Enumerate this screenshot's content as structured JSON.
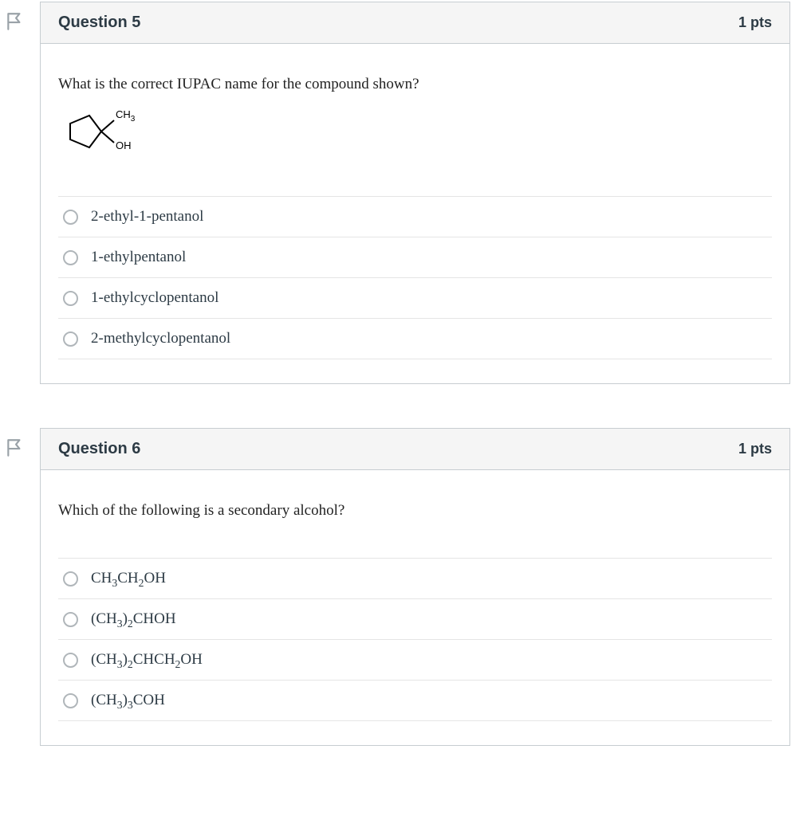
{
  "flag_icon": {
    "stroke": "#9aa2a8",
    "stroke_width": 2
  },
  "questions": [
    {
      "title": "Question 5",
      "points": "1 pts",
      "prompt": "What is the correct IUPAC name for the compound shown?",
      "has_molecule": true,
      "molecule": {
        "ring_stroke": "#000000",
        "label_ch3": "CH",
        "label_ch3_sub": "3",
        "label_oh": "OH",
        "font_size": 13
      },
      "options": [
        {
          "html": "2-ethyl-1-pentanol"
        },
        {
          "html": "1-ethylpentanol"
        },
        {
          "html": "1-ethylcyclopentanol"
        },
        {
          "html": "2-methylcyclopentanol"
        }
      ]
    },
    {
      "title": "Question 6",
      "points": "1 pts",
      "prompt": "Which of the following is a secondary alcohol?",
      "has_molecule": false,
      "options": [
        {
          "html": "CH<sub>3</sub>CH<sub>2</sub>OH"
        },
        {
          "html": "(CH<sub>3</sub>)<sub>2</sub>CHOH"
        },
        {
          "html": "(CH<sub>3</sub>)<sub>2</sub>CHCH<sub>2</sub>OH"
        },
        {
          "html": "(CH<sub>3</sub>)<sub>3</sub>COH"
        }
      ]
    }
  ],
  "colors": {
    "card_border": "#c7cdd1",
    "header_bg": "#f5f5f5",
    "row_border": "#e5e5e5",
    "text": "#2d3b45",
    "radio_border": "#b0b6ba"
  }
}
